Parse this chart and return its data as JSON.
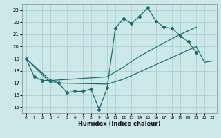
{
  "xlabel": "Humidex (Indice chaleur)",
  "xlim": [
    -0.5,
    23.5
  ],
  "ylim": [
    14.5,
    23.5
  ],
  "xticks": [
    0,
    1,
    2,
    3,
    4,
    5,
    6,
    7,
    8,
    9,
    10,
    11,
    12,
    13,
    14,
    15,
    16,
    17,
    18,
    19,
    20,
    21,
    22,
    23
  ],
  "yticks": [
    15,
    16,
    17,
    18,
    19,
    20,
    21,
    22,
    23
  ],
  "bg_color": "#cce8e8",
  "grid_color": "#aacfcf",
  "line_color": "#1e6b6b",
  "jagged_x": [
    0,
    1,
    2,
    3,
    4,
    5,
    6,
    7,
    8,
    9,
    10,
    11,
    12,
    13,
    14,
    15,
    16,
    17,
    18,
    19,
    20,
    21
  ],
  "jagged_y": [
    19.0,
    17.5,
    17.2,
    17.2,
    17.0,
    16.2,
    16.3,
    16.3,
    16.5,
    14.8,
    16.6,
    21.5,
    22.3,
    21.9,
    22.5,
    23.2,
    22.1,
    21.6,
    21.5,
    20.9,
    20.4,
    19.5
  ],
  "upper_x": [
    0,
    3,
    10,
    12,
    14,
    17,
    19,
    21
  ],
  "upper_y": [
    19.0,
    17.2,
    17.5,
    18.3,
    19.2,
    20.3,
    21.0,
    21.6
  ],
  "lower_x": [
    0,
    3,
    10,
    12,
    14,
    16,
    18,
    20,
    21,
    22,
    23
  ],
  "lower_y": [
    19.0,
    17.0,
    16.9,
    17.3,
    17.9,
    18.5,
    19.1,
    19.7,
    20.0,
    18.7,
    18.8
  ]
}
